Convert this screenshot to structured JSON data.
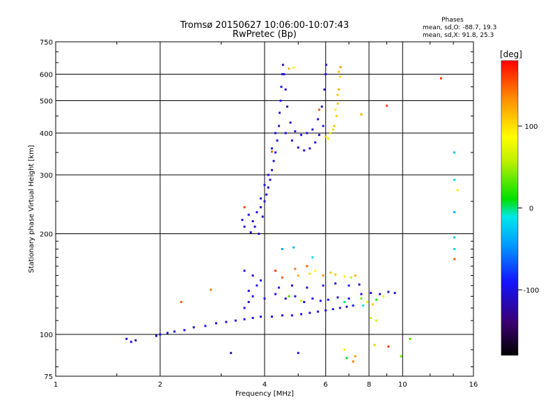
{
  "chart_data": {
    "type": "scatter",
    "title": "Tromsø 20150627 10:06:00-10:07:43",
    "subtitle": "RwPretec (Bp)",
    "xlabel": "Frequency [MHz]",
    "ylabel": "Stationary phase Virtual Height [km]",
    "x_scale": "log",
    "y_scale": "log",
    "xlim": [
      1,
      16
    ],
    "ylim": [
      75,
      750
    ],
    "x_ticks": [
      1,
      2,
      4,
      6,
      8,
      10,
      16
    ],
    "x_tick_labels": [
      "1",
      "2",
      "4",
      "6",
      "8",
      "10",
      "16"
    ],
    "y_ticks": [
      75,
      100,
      200,
      300,
      400,
      500,
      600,
      750
    ],
    "y_tick_labels": [
      "75",
      "100",
      "200",
      "300",
      "400",
      "500",
      "600",
      "750"
    ],
    "grid": true,
    "annotation": {
      "heading": "Phases",
      "line1": "mean, sd,O: -88.7, 19.3",
      "line2": "mean, sd,X:  91.8, 25.3"
    },
    "colorbar": {
      "label": "[deg]",
      "range": [
        -180,
        180
      ],
      "ticks": [
        100,
        0,
        -100
      ],
      "tick_labels": [
        "100",
        "0",
        "-100"
      ],
      "colors": [
        "#000000",
        "#3a006e",
        "#1414ff",
        "#00a0ff",
        "#00e8e8",
        "#00e000",
        "#bff000",
        "#ffff00",
        "#ff9000",
        "#ff0000"
      ]
    },
    "series": [
      {
        "points": [
          {
            "f": 1.6,
            "h": 97,
            "p": -110
          },
          {
            "f": 1.65,
            "h": 95,
            "p": -100
          },
          {
            "f": 1.7,
            "h": 96,
            "p": -115
          },
          {
            "f": 1.95,
            "h": 99,
            "p": -105
          },
          {
            "f": 2.0,
            "h": 100,
            "p": -100
          },
          {
            "f": 2.1,
            "h": 101,
            "p": -95
          },
          {
            "f": 2.2,
            "h": 102,
            "p": -110
          },
          {
            "f": 2.35,
            "h": 103,
            "p": -100
          },
          {
            "f": 2.5,
            "h": 105,
            "p": -105
          },
          {
            "f": 2.7,
            "h": 106,
            "p": -95
          },
          {
            "f": 2.9,
            "h": 108,
            "p": -100
          },
          {
            "f": 3.1,
            "h": 109,
            "p": -110
          },
          {
            "f": 3.3,
            "h": 110,
            "p": -100
          },
          {
            "f": 3.5,
            "h": 111,
            "p": -95
          },
          {
            "f": 3.7,
            "h": 112,
            "p": -105
          },
          {
            "f": 3.9,
            "h": 113,
            "p": -100
          },
          {
            "f": 4.2,
            "h": 113,
            "p": -90
          },
          {
            "f": 4.5,
            "h": 114,
            "p": -100
          },
          {
            "f": 4.8,
            "h": 114,
            "p": -95
          },
          {
            "f": 5.1,
            "h": 115,
            "p": -100
          },
          {
            "f": 5.4,
            "h": 116,
            "p": -105
          },
          {
            "f": 5.7,
            "h": 117,
            "p": -95
          },
          {
            "f": 6.0,
            "h": 118,
            "p": -100
          },
          {
            "f": 6.3,
            "h": 119,
            "p": -90
          },
          {
            "f": 6.6,
            "h": 120,
            "p": -95
          },
          {
            "f": 6.9,
            "h": 121,
            "p": -100
          },
          {
            "f": 7.2,
            "h": 122,
            "p": -85
          },
          {
            "f": 3.5,
            "h": 120,
            "p": -100
          },
          {
            "f": 3.6,
            "h": 125,
            "p": -105
          },
          {
            "f": 3.7,
            "h": 130,
            "p": -95
          },
          {
            "f": 3.6,
            "h": 135,
            "p": -110
          },
          {
            "f": 3.8,
            "h": 140,
            "p": -100
          },
          {
            "f": 3.9,
            "h": 145,
            "p": -90
          },
          {
            "f": 3.7,
            "h": 150,
            "p": -105
          },
          {
            "f": 3.5,
            "h": 155,
            "p": -100
          },
          {
            "f": 4.0,
            "h": 128,
            "p": -95
          },
          {
            "f": 4.3,
            "h": 132,
            "p": -100
          },
          {
            "f": 4.6,
            "h": 128,
            "p": -105
          },
          {
            "f": 4.9,
            "h": 130,
            "p": -95
          },
          {
            "f": 5.2,
            "h": 125,
            "p": -100
          },
          {
            "f": 5.5,
            "h": 128,
            "p": -90
          },
          {
            "f": 5.8,
            "h": 126,
            "p": -100
          },
          {
            "f": 6.1,
            "h": 127,
            "p": -95
          },
          {
            "f": 6.5,
            "h": 129,
            "p": -100
          },
          {
            "f": 7.0,
            "h": 128,
            "p": -105
          },
          {
            "f": 7.6,
            "h": 132,
            "p": -100
          },
          {
            "f": 8.1,
            "h": 133,
            "p": -95
          },
          {
            "f": 8.6,
            "h": 132,
            "p": -100
          },
          {
            "f": 9.1,
            "h": 134,
            "p": -105
          },
          {
            "f": 9.5,
            "h": 133,
            "p": -100
          },
          {
            "f": 4.4,
            "h": 138,
            "p": -95
          },
          {
            "f": 4.8,
            "h": 140,
            "p": -100
          },
          {
            "f": 5.3,
            "h": 138,
            "p": -105
          },
          {
            "f": 5.9,
            "h": 140,
            "p": -95
          },
          {
            "f": 6.4,
            "h": 142,
            "p": -100
          },
          {
            "f": 7.0,
            "h": 140,
            "p": -90
          },
          {
            "f": 7.5,
            "h": 141,
            "p": -100
          },
          {
            "f": 4.5,
            "h": 148,
            "p": 150
          },
          {
            "f": 5.0,
            "h": 150,
            "p": 120
          },
          {
            "f": 5.4,
            "h": 152,
            "p": 100
          },
          {
            "f": 5.9,
            "h": 150,
            "p": 130
          },
          {
            "f": 6.4,
            "h": 151,
            "p": 110
          },
          {
            "f": 6.8,
            "h": 149,
            "p": 95
          },
          {
            "f": 7.3,
            "h": 150,
            "p": 120
          },
          {
            "f": 4.3,
            "h": 155,
            "p": 160
          },
          {
            "f": 4.9,
            "h": 157,
            "p": 140
          },
          {
            "f": 5.6,
            "h": 155,
            "p": 90
          },
          {
            "f": 6.2,
            "h": 153,
            "p": 110
          },
          {
            "f": 7.1,
            "h": 148,
            "p": 60
          },
          {
            "f": 7.6,
            "h": 128,
            "p": 40
          },
          {
            "f": 7.9,
            "h": 125,
            "p": 80
          },
          {
            "f": 8.2,
            "h": 123,
            "p": 110
          },
          {
            "f": 8.4,
            "h": 127,
            "p": 20
          },
          {
            "f": 7.7,
            "h": 122,
            "p": -10
          },
          {
            "f": 8.8,
            "h": 130,
            "p": 70
          },
          {
            "f": 4.7,
            "h": 130,
            "p": 30
          },
          {
            "f": 5.1,
            "h": 126,
            "p": 60
          },
          {
            "f": 6.8,
            "h": 125,
            "p": 0
          },
          {
            "f": 3.85,
            "h": 200,
            "p": -110
          },
          {
            "f": 3.65,
            "h": 202,
            "p": -100
          },
          {
            "f": 3.5,
            "h": 210,
            "p": -105
          },
          {
            "f": 3.45,
            "h": 220,
            "p": -100
          },
          {
            "f": 3.6,
            "h": 228,
            "p": -95
          },
          {
            "f": 3.8,
            "h": 232,
            "p": -100
          },
          {
            "f": 3.9,
            "h": 240,
            "p": -110
          },
          {
            "f": 4.0,
            "h": 250,
            "p": -100
          },
          {
            "f": 4.05,
            "h": 262,
            "p": -105
          },
          {
            "f": 4.1,
            "h": 275,
            "p": -100
          },
          {
            "f": 4.15,
            "h": 290,
            "p": -95
          },
          {
            "f": 4.2,
            "h": 310,
            "p": -100
          },
          {
            "f": 4.25,
            "h": 330,
            "p": -105
          },
          {
            "f": 4.3,
            "h": 350,
            "p": -100
          },
          {
            "f": 4.35,
            "h": 380,
            "p": -95
          },
          {
            "f": 4.4,
            "h": 420,
            "p": -100
          },
          {
            "f": 4.42,
            "h": 460,
            "p": -105
          },
          {
            "f": 4.45,
            "h": 500,
            "p": -100
          },
          {
            "f": 4.47,
            "h": 550,
            "p": -95
          },
          {
            "f": 4.5,
            "h": 600,
            "p": -100
          },
          {
            "f": 4.52,
            "h": 640,
            "p": -105
          },
          {
            "f": 3.75,
            "h": 210,
            "p": -100
          },
          {
            "f": 3.95,
            "h": 225,
            "p": -95
          },
          {
            "f": 3.7,
            "h": 218,
            "p": -105
          },
          {
            "f": 3.9,
            "h": 255,
            "p": -100
          },
          {
            "f": 4.0,
            "h": 280,
            "p": -90
          },
          {
            "f": 4.1,
            "h": 300,
            "p": -100
          },
          {
            "f": 4.2,
            "h": 360,
            "p": -95
          },
          {
            "f": 4.3,
            "h": 400,
            "p": -100
          },
          {
            "f": 4.55,
            "h": 600,
            "p": -95
          },
          {
            "f": 4.6,
            "h": 540,
            "p": -100
          },
          {
            "f": 4.65,
            "h": 480,
            "p": -105
          },
          {
            "f": 4.75,
            "h": 430,
            "p": -100
          },
          {
            "f": 4.9,
            "h": 405,
            "p": -95
          },
          {
            "f": 5.1,
            "h": 395,
            "p": -100
          },
          {
            "f": 5.3,
            "h": 400,
            "p": -105
          },
          {
            "f": 5.5,
            "h": 410,
            "p": -100
          },
          {
            "f": 5.7,
            "h": 440,
            "p": -95
          },
          {
            "f": 5.85,
            "h": 480,
            "p": -100
          },
          {
            "f": 5.95,
            "h": 540,
            "p": -105
          },
          {
            "f": 6.0,
            "h": 600,
            "p": -100
          },
          {
            "f": 6.02,
            "h": 640,
            "p": -95
          },
          {
            "f": 4.6,
            "h": 400,
            "p": -100
          },
          {
            "f": 4.8,
            "h": 380,
            "p": -95
          },
          {
            "f": 5.0,
            "h": 362,
            "p": -100
          },
          {
            "f": 5.2,
            "h": 355,
            "p": -105
          },
          {
            "f": 5.4,
            "h": 360,
            "p": -100
          },
          {
            "f": 5.6,
            "h": 375,
            "p": -95
          },
          {
            "f": 5.75,
            "h": 395,
            "p": -100
          },
          {
            "f": 5.9,
            "h": 420,
            "p": -90
          },
          {
            "f": 6.0,
            "h": 390,
            "p": 110
          },
          {
            "f": 6.2,
            "h": 400,
            "p": 100
          },
          {
            "f": 6.35,
            "h": 420,
            "p": 115
          },
          {
            "f": 6.45,
            "h": 450,
            "p": 105
          },
          {
            "f": 6.5,
            "h": 490,
            "p": 110
          },
          {
            "f": 6.55,
            "h": 540,
            "p": 120
          },
          {
            "f": 6.6,
            "h": 590,
            "p": 100
          },
          {
            "f": 6.62,
            "h": 630,
            "p": 130
          },
          {
            "f": 6.1,
            "h": 385,
            "p": 95
          },
          {
            "f": 6.3,
            "h": 410,
            "p": 100
          },
          {
            "f": 6.4,
            "h": 470,
            "p": 90
          },
          {
            "f": 6.5,
            "h": 520,
            "p": 105
          },
          {
            "f": 6.55,
            "h": 610,
            "p": 115
          },
          {
            "f": 5.75,
            "h": 470,
            "p": 150
          },
          {
            "f": 14.1,
            "h": 350,
            "p": -30
          },
          {
            "f": 14.1,
            "h": 290,
            "p": -20
          },
          {
            "f": 14.1,
            "h": 232,
            "p": -40
          },
          {
            "f": 14.1,
            "h": 195,
            "p": -30
          },
          {
            "f": 14.1,
            "h": 180,
            "p": -20
          },
          {
            "f": 14.1,
            "h": 168,
            "p": 150
          },
          {
            "f": 14.4,
            "h": 270,
            "p": 90
          },
          {
            "f": 12.9,
            "h": 583,
            "p": 160
          },
          {
            "f": 9.0,
            "h": 483,
            "p": 160
          },
          {
            "f": 7.6,
            "h": 455,
            "p": 120
          },
          {
            "f": 4.2,
            "h": 352,
            "p": 150
          },
          {
            "f": 3.5,
            "h": 240,
            "p": 160
          },
          {
            "f": 4.7,
            "h": 623,
            "p": 120
          },
          {
            "f": 4.85,
            "h": 628,
            "p": 80
          },
          {
            "f": 3.2,
            "h": 88,
            "p": -110
          },
          {
            "f": 5.0,
            "h": 88,
            "p": -100
          },
          {
            "f": 6.8,
            "h": 90,
            "p": 80
          },
          {
            "f": 7.3,
            "h": 86,
            "p": 130
          },
          {
            "f": 8.3,
            "h": 93,
            "p": 110
          },
          {
            "f": 9.1,
            "h": 92,
            "p": 160
          },
          {
            "f": 9.9,
            "h": 86,
            "p": 40
          },
          {
            "f": 10.5,
            "h": 97,
            "p": 30
          },
          {
            "f": 7.2,
            "h": 83,
            "p": 140
          },
          {
            "f": 6.9,
            "h": 85,
            "p": 10
          },
          {
            "f": 2.3,
            "h": 125,
            "p": 150
          },
          {
            "f": 2.8,
            "h": 136,
            "p": 140
          },
          {
            "f": 4.5,
            "h": 180,
            "p": -40
          },
          {
            "f": 4.85,
            "h": 182,
            "p": -30
          },
          {
            "f": 5.5,
            "h": 170,
            "p": -20
          },
          {
            "f": 8.1,
            "h": 112,
            "p": 60
          },
          {
            "f": 8.4,
            "h": 110,
            "p": 70
          },
          {
            "f": 5.3,
            "h": 160,
            "p": 150
          }
        ]
      }
    ]
  }
}
